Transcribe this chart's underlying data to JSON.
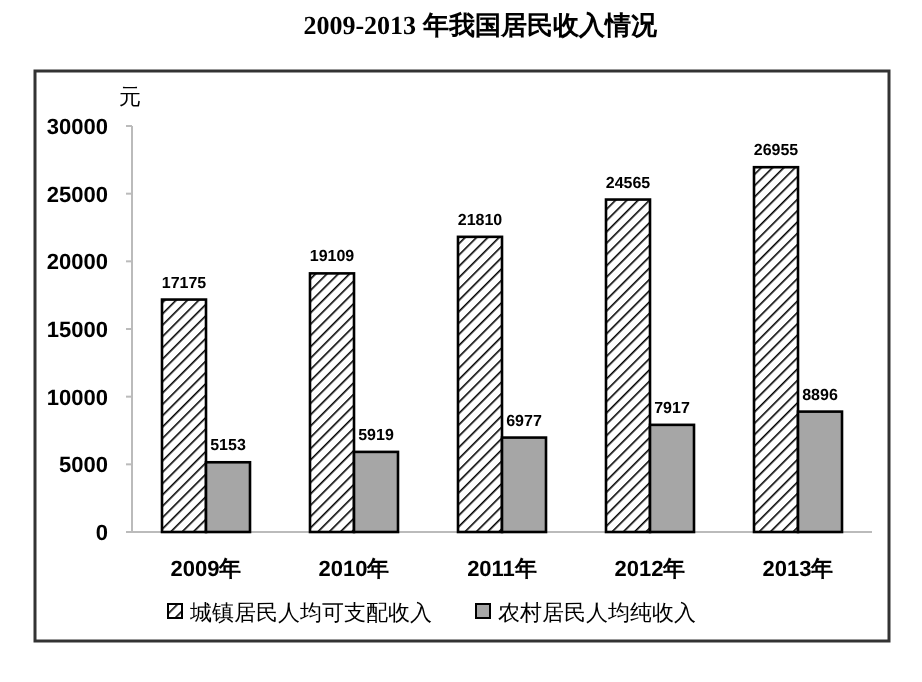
{
  "chart_data": {
    "type": "bar",
    "title": "2009-2013 年我国居民收入情况",
    "ylabel": "元",
    "categories": [
      "2009年",
      "2010年",
      "2011年",
      "2012年",
      "2013年"
    ],
    "series": [
      {
        "name": "城镇居民人均可支配收入",
        "color": "#000000",
        "values": [
          17175,
          19109,
          21810,
          24565,
          26955
        ]
      },
      {
        "name": "农村居民人均纯收入",
        "color": "#a6a6a6",
        "values": [
          5153,
          5919,
          6977,
          7917,
          8896
        ]
      }
    ],
    "ylim": [
      0,
      30000
    ],
    "yticks": [
      0,
      5000,
      10000,
      15000,
      20000,
      25000,
      30000
    ],
    "data_labels": true,
    "legend": "bottom",
    "grid": false
  }
}
